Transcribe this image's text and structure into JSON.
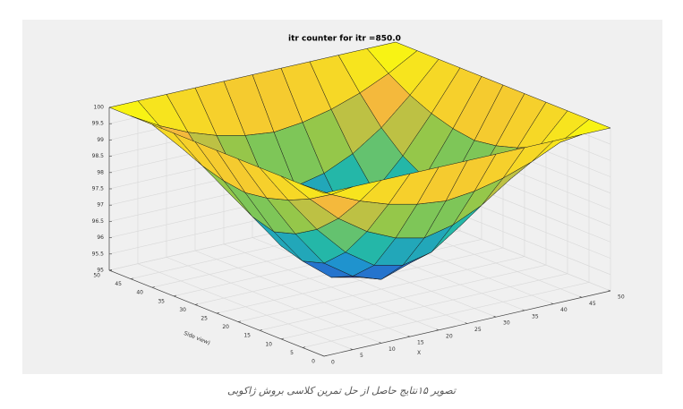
{
  "chart_data": {
    "type": "surface",
    "title": "itr counter for  itr =850.0",
    "xlabel": "X",
    "ylabel": "Side view)",
    "x": [
      0,
      5,
      10,
      15,
      20,
      25,
      30,
      35,
      40,
      45,
      50
    ],
    "y": [
      0,
      5,
      10,
      15,
      20,
      25,
      30,
      35,
      40,
      45,
      50
    ],
    "z": [
      [
        100,
        100,
        100,
        100,
        100,
        100,
        100,
        100,
        100,
        100,
        100
      ],
      [
        100,
        99.5,
        99.1,
        98.8,
        98.6,
        98.5,
        98.6,
        98.8,
        99.1,
        99.5,
        100
      ],
      [
        100,
        99.1,
        98.3,
        97.7,
        97.3,
        97.1,
        97.3,
        97.7,
        98.3,
        99.1,
        100
      ],
      [
        100,
        98.8,
        97.7,
        96.8,
        96.2,
        96.0,
        96.2,
        96.8,
        97.7,
        98.8,
        100
      ],
      [
        100,
        98.6,
        97.3,
        96.2,
        95.6,
        95.3,
        95.6,
        96.2,
        97.3,
        98.6,
        100
      ],
      [
        100,
        98.5,
        97.1,
        96.0,
        95.3,
        95.1,
        95.3,
        96.0,
        97.1,
        98.5,
        100
      ],
      [
        100,
        98.6,
        97.3,
        96.2,
        95.6,
        95.3,
        95.6,
        96.2,
        97.3,
        98.6,
        100
      ],
      [
        100,
        98.8,
        97.7,
        96.8,
        96.2,
        96.0,
        96.2,
        96.8,
        97.7,
        98.8,
        100
      ],
      [
        100,
        99.1,
        98.3,
        97.7,
        97.3,
        97.1,
        97.3,
        97.7,
        98.3,
        99.1,
        100
      ],
      [
        100,
        99.5,
        99.1,
        98.8,
        98.6,
        98.5,
        98.6,
        98.8,
        99.1,
        99.5,
        100
      ],
      [
        100,
        100,
        100,
        100,
        100,
        100,
        100,
        100,
        100,
        100,
        100
      ]
    ],
    "xlim": [
      0,
      50
    ],
    "ylim": [
      0,
      50
    ],
    "zlim": [
      95,
      100
    ],
    "xticks": [
      0,
      5,
      10,
      15,
      20,
      25,
      30,
      35,
      40,
      45,
      50
    ],
    "yticks": [
      0,
      5,
      10,
      15,
      20,
      25,
      30,
      35,
      40,
      45,
      50
    ],
    "zticks": [
      95,
      95.5,
      96,
      96.5,
      97,
      97.5,
      98,
      98.5,
      99,
      99.5,
      100
    ],
    "grid": true,
    "colormap": [
      "#3e26a8",
      "#1e8ad8",
      "#24b7a8",
      "#8bc84c",
      "#f4b93c",
      "#f9fb0e"
    ]
  },
  "caption": "تصویر ۱۵نتایج حاصل از حل تمرین کلاسی بروش ژاکوبی"
}
